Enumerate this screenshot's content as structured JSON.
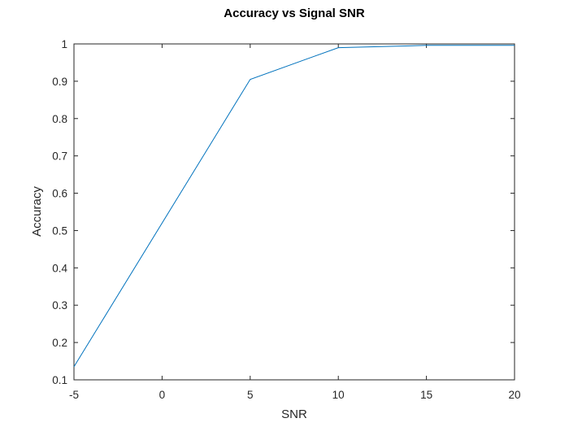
{
  "chart_data": {
    "type": "line",
    "title": "Accuracy vs Signal SNR",
    "xlabel": "SNR",
    "ylabel": "Accuracy",
    "xlim": [
      -5,
      20
    ],
    "ylim": [
      0.1,
      1
    ],
    "xticks": [
      -5,
      0,
      5,
      10,
      15,
      20
    ],
    "xtick_labels": [
      "-5",
      "0",
      "5",
      "10",
      "15",
      "20"
    ],
    "yticks": [
      0.1,
      0.2,
      0.3,
      0.4,
      0.5,
      0.6,
      0.7,
      0.8,
      0.9,
      1
    ],
    "ytick_labels": [
      "0.1",
      "0.2",
      "0.3",
      "0.4",
      "0.5",
      "0.6",
      "0.7",
      "0.8",
      "0.9",
      "1"
    ],
    "grid": false,
    "legend": "none",
    "series": [
      {
        "color": "#0072bd",
        "x": [
          -5,
          5,
          10,
          15,
          20
        ],
        "y": [
          0.135,
          0.905,
          0.99,
          0.996,
          0.996
        ]
      }
    ]
  }
}
